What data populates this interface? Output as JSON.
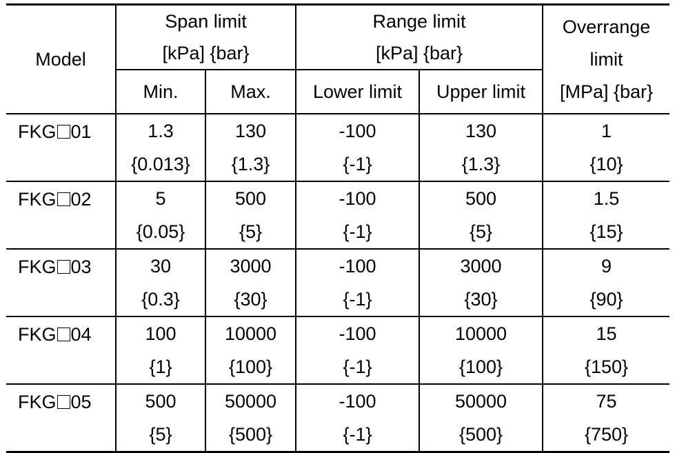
{
  "header": {
    "model": "Model",
    "span_limit": [
      "Span limit",
      "[kPa] {bar}"
    ],
    "range_limit": [
      "Range limit",
      "[kPa] {bar}"
    ],
    "overrange_limit": [
      "Overrange",
      "limit",
      "[MPa] {bar}"
    ],
    "min": "Min.",
    "max": "Max.",
    "lower_limit": "Lower limit",
    "upper_limit": "Upper limit"
  },
  "rows": [
    {
      "model_prefix": "FKG",
      "model_suffix": "01",
      "min": "1.3",
      "min_bar": "{0.013}",
      "max": "130",
      "max_bar": "{1.3}",
      "lower": "-100",
      "lower_bar": "{-1}",
      "upper": "130",
      "upper_bar": "{1.3}",
      "over": "1",
      "over_bar": "{10}"
    },
    {
      "model_prefix": "FKG",
      "model_suffix": "02",
      "min": "5",
      "min_bar": "{0.05}",
      "max": "500",
      "max_bar": "{5}",
      "lower": "-100",
      "lower_bar": "{-1}",
      "upper": "500",
      "upper_bar": "{5}",
      "over": "1.5",
      "over_bar": "{15}"
    },
    {
      "model_prefix": "FKG",
      "model_suffix": "03",
      "min": "30",
      "min_bar": "{0.3}",
      "max": "3000",
      "max_bar": "{30}",
      "lower": "-100",
      "lower_bar": "{-1}",
      "upper": "3000",
      "upper_bar": "{30}",
      "over": "9",
      "over_bar": "{90}"
    },
    {
      "model_prefix": "FKG",
      "model_suffix": "04",
      "min": "100",
      "min_bar": "{1}",
      "max": "10000",
      "max_bar": "{100}",
      "lower": "-100",
      "lower_bar": "{-1}",
      "upper": "10000",
      "upper_bar": "{100}",
      "over": "15",
      "over_bar": "{150}"
    },
    {
      "model_prefix": "FKG",
      "model_suffix": "05",
      "min": "500",
      "min_bar": "{5}",
      "max": "50000",
      "max_bar": "{500}",
      "lower": "-100",
      "lower_bar": "{-1}",
      "upper": "50000",
      "upper_bar": "{500}",
      "over": "75",
      "over_bar": "{750}"
    }
  ]
}
